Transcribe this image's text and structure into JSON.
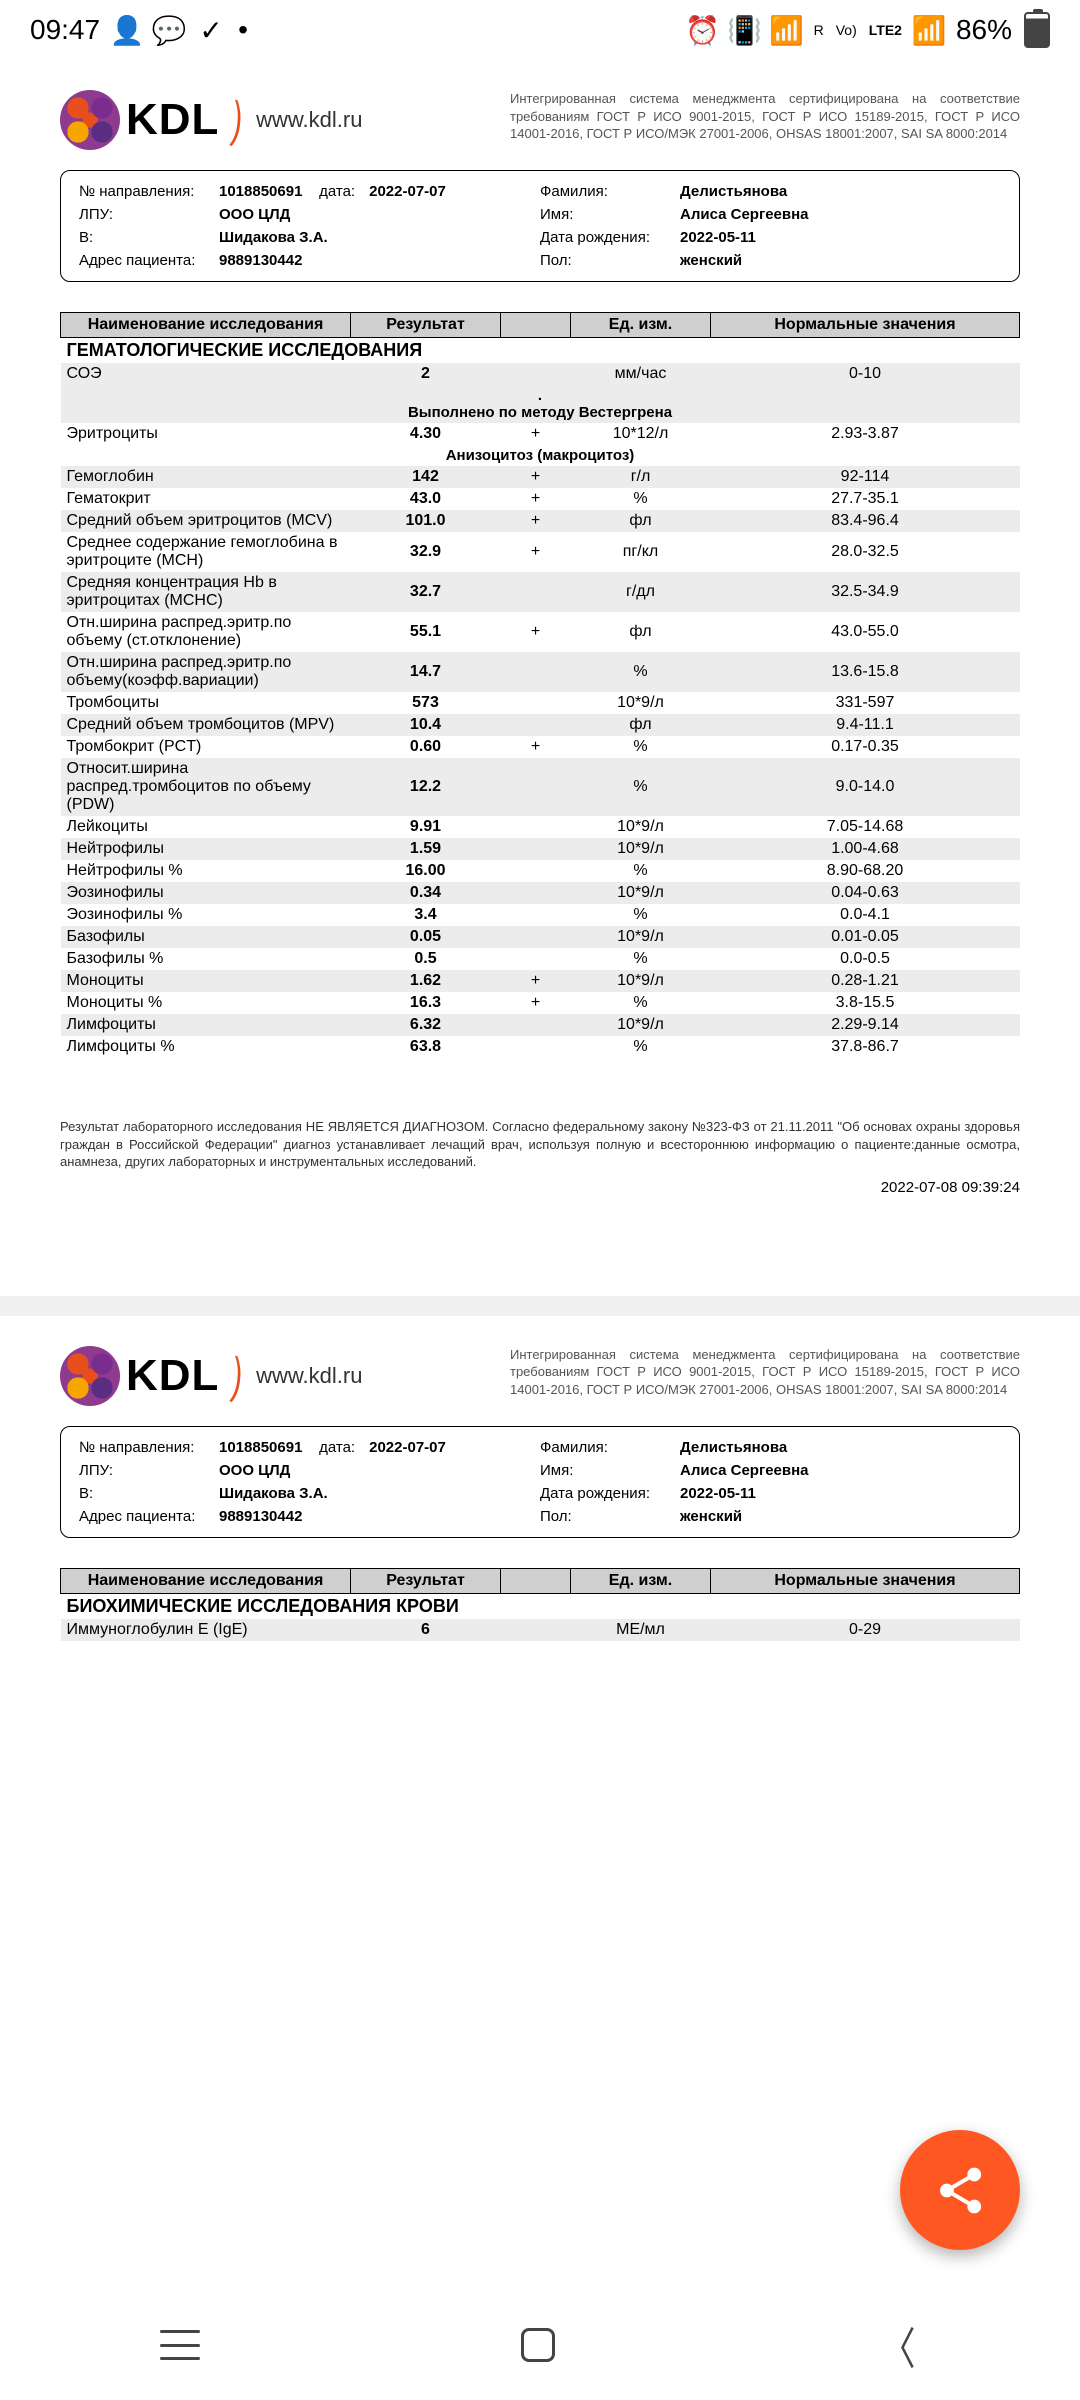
{
  "statusbar": {
    "time": "09:47",
    "battery_pct": "86%",
    "lte_label": "LTE2",
    "r_label": "R",
    "vo_label": "Vo)"
  },
  "logo": {
    "text": "KDL",
    "url": "www.kdl.ru"
  },
  "cert": "Интегрированная система менеджмента сертифицирована на соответствие требованиям ГОСТ Р ИСО 9001-2015, ГОСТ Р ИСО 15189-2015, ГОСТ Р ИСО 14001-2016, ГОСТ Р ИСО/МЭК 27001-2006, OHSAS 18001:2007, SAI SA 8000:2014",
  "info": {
    "napr_lbl": "№ направления:",
    "napr": "1018850691",
    "date_lbl": "дата:",
    "date": "2022-07-07",
    "lpu_lbl": "ЛПУ:",
    "lpu": "ООО ЦЛД",
    "v_lbl": "В:",
    "v": "Шидакова З.А.",
    "addr_lbl": "Адрес пациента:",
    "addr": "9889130442",
    "fam_lbl": "Фамилия:",
    "fam": "Делистьянова",
    "name_lbl": "Имя:",
    "name": "Алиса Сергеевна",
    "dob_lbl": "Дата рождения:",
    "dob": "2022-05-11",
    "sex_lbl": "Пол:",
    "sex": "женский"
  },
  "headers": {
    "name": "Наименование исследования",
    "result": "Результат",
    "unit": "Ед. изм.",
    "range": "Нормальные значения"
  },
  "section1": "ГЕМАТОЛОГИЧЕСКИЕ ИССЛЕДОВАНИЯ",
  "note1": ".\nВыполнено по методу Вестергрена",
  "note2": "Анизоцитоз (макроцитоз)",
  "rows": [
    {
      "n": "СОЭ",
      "r": "2",
      "f": "",
      "u": "мм/час",
      "g": "0-10",
      "alt": true,
      "note_after": "note1"
    },
    {
      "n": "Эритроциты",
      "r": "4.30",
      "f": "+",
      "u": "10*12/л",
      "g": "2.93-3.87",
      "alt": false,
      "note_after": "note2"
    },
    {
      "n": "Гемоглобин",
      "r": "142",
      "f": "+",
      "u": "г/л",
      "g": "92-114",
      "alt": true
    },
    {
      "n": "Гематокрит",
      "r": "43.0",
      "f": "+",
      "u": "%",
      "g": "27.7-35.1",
      "alt": false
    },
    {
      "n": "Средний объем эритроцитов (MCV)",
      "r": "101.0",
      "f": "+",
      "u": "фл",
      "g": "83.4-96.4",
      "alt": true
    },
    {
      "n": "Среднее содержание гемоглобина в эритроците (MCH)",
      "r": "32.9",
      "f": "+",
      "u": "пг/кл",
      "g": "28.0-32.5",
      "alt": false
    },
    {
      "n": "Средняя концентрация Hb в эритроцитах (MCHC)",
      "r": "32.7",
      "f": "",
      "u": "г/дл",
      "g": "32.5-34.9",
      "alt": true
    },
    {
      "n": "Отн.ширина распред.эритр.по объему (ст.отклонение)",
      "r": "55.1",
      "f": "+",
      "u": "фл",
      "g": "43.0-55.0",
      "alt": false
    },
    {
      "n": "Отн.ширина распред.эритр.по объему(коэфф.вариации)",
      "r": "14.7",
      "f": "",
      "u": "%",
      "g": "13.6-15.8",
      "alt": true
    },
    {
      "n": "Тромбоциты",
      "r": "573",
      "f": "",
      "u": "10*9/л",
      "g": "331-597",
      "alt": false
    },
    {
      "n": "Средний объем тромбоцитов (MPV)",
      "r": "10.4",
      "f": "",
      "u": "фл",
      "g": "9.4-11.1",
      "alt": true
    },
    {
      "n": "Тромбокрит (PCT)",
      "r": "0.60",
      "f": "+",
      "u": "%",
      "g": "0.17-0.35",
      "alt": false
    },
    {
      "n": "Относит.ширина распред.тромбоцитов по объему (PDW)",
      "r": "12.2",
      "f": "",
      "u": "%",
      "g": "9.0-14.0",
      "alt": true
    },
    {
      "n": "Лейкоциты",
      "r": "9.91",
      "f": "",
      "u": "10*9/л",
      "g": "7.05-14.68",
      "alt": false
    },
    {
      "n": "Нейтрофилы",
      "r": "1.59",
      "f": "",
      "u": "10*9/л",
      "g": "1.00-4.68",
      "alt": true
    },
    {
      "n": "Нейтрофилы %",
      "r": "16.00",
      "f": "",
      "u": "%",
      "g": "8.90-68.20",
      "alt": false
    },
    {
      "n": "Эозинофилы",
      "r": "0.34",
      "f": "",
      "u": "10*9/л",
      "g": "0.04-0.63",
      "alt": true
    },
    {
      "n": "Эозинофилы %",
      "r": "3.4",
      "f": "",
      "u": "%",
      "g": "0.0-4.1",
      "alt": false
    },
    {
      "n": "Базофилы",
      "r": "0.05",
      "f": "",
      "u": "10*9/л",
      "g": "0.01-0.05",
      "alt": true
    },
    {
      "n": "Базофилы %",
      "r": "0.5",
      "f": "",
      "u": "%",
      "g": "0.0-0.5",
      "alt": false
    },
    {
      "n": "Моноциты",
      "r": "1.62",
      "f": "+",
      "u": "10*9/л",
      "g": "0.28-1.21",
      "alt": true
    },
    {
      "n": "Моноциты %",
      "r": "16.3",
      "f": "+",
      "u": "%",
      "g": "3.8-15.5",
      "alt": false
    },
    {
      "n": "Лимфоциты",
      "r": "6.32",
      "f": "",
      "u": "10*9/л",
      "g": "2.29-9.14",
      "alt": true
    },
    {
      "n": "Лимфоциты %",
      "r": "63.8",
      "f": "",
      "u": "%",
      "g": "37.8-86.7",
      "alt": false
    }
  ],
  "disclaimer": "Результат лабораторного исследования НЕ ЯВЛЯЕТСЯ ДИАГНОЗОМ. Согласно федеральному закону №323-ФЗ от 21.11.2011 \"Об основах охраны здоровья граждан в Российской Федерации\" диагноз устанавливает лечащий врач, используя полную и всестороннюю информацию о пациенте:данные осмотра, анамнеза, других лабораторных и инструментальных исследований.",
  "timestamp": "2022-07-08 09:39:24",
  "section2": "БИОХИМИЧЕСКИЕ ИССЛЕДОВАНИЯ КРОВИ",
  "rows2": [
    {
      "n": "Иммуноглобулин Е (IgE)",
      "r": "6",
      "f": "",
      "u": "МЕ/мл",
      "g": "0-29",
      "alt": true
    }
  ]
}
